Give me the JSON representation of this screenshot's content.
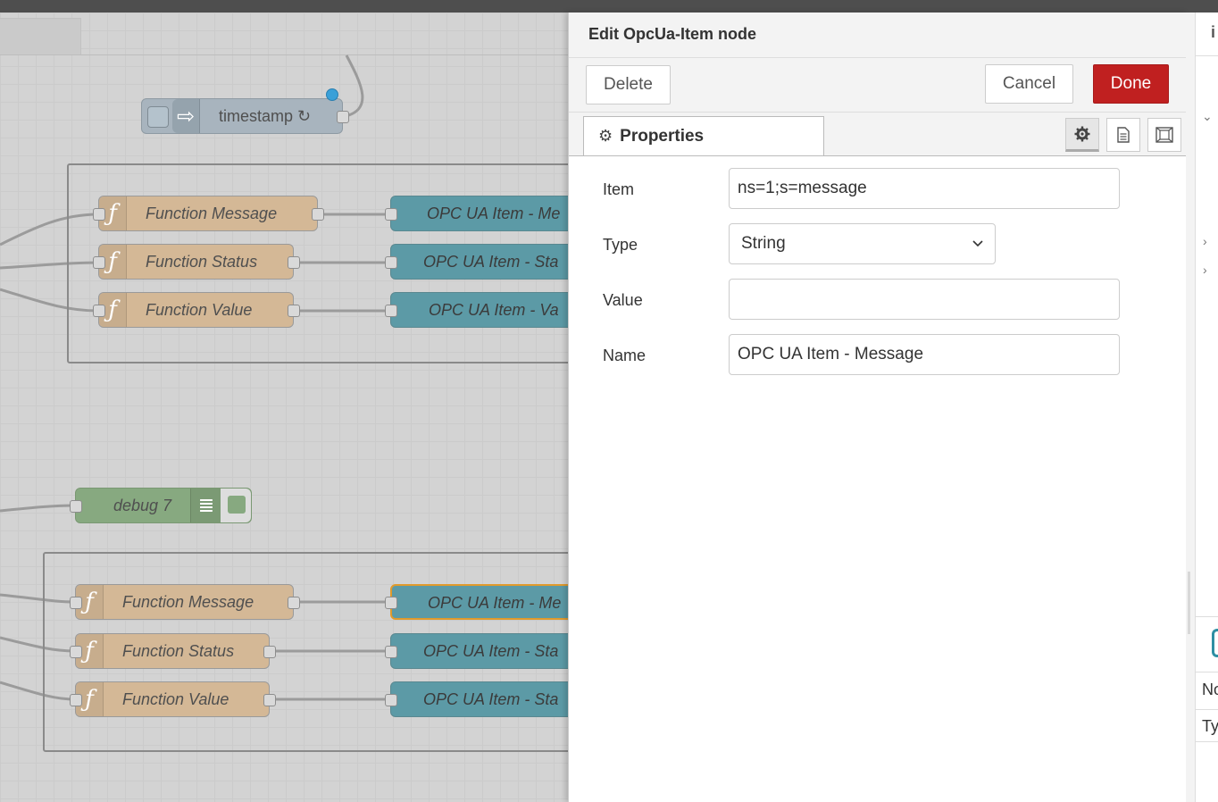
{
  "canvas": {
    "upper": {
      "inject": {
        "label": "timestamp ↻"
      },
      "functions": [
        "Function Message",
        "Function Status",
        "Function Value"
      ],
      "opc": [
        "OPC UA Item - Me",
        "OPC UA Item - Sta",
        "OPC UA Item - Va"
      ]
    },
    "debug": {
      "label": "debug 7"
    },
    "lower": {
      "functions": [
        "Function Message",
        "Function Status",
        "Function Value"
      ],
      "opc": [
        "OPC UA Item - Me",
        "OPC UA Item - Sta",
        "OPC UA Item - Sta"
      ]
    }
  },
  "tray": {
    "title": "Edit OpcUa-Item node",
    "delete_label": "Delete",
    "cancel_label": "Cancel",
    "done_label": "Done",
    "tab_label": "Properties",
    "fields": {
      "item": {
        "label": "Item",
        "value": "ns=1;s=message"
      },
      "type": {
        "label": "Type",
        "value": "String"
      },
      "value": {
        "label": "Value",
        "value": ""
      },
      "name": {
        "label": "Name",
        "value": "OPC UA Item - Message"
      }
    }
  },
  "sidebar": {
    "info_icon": "i",
    "row1": "No",
    "row2": "Ty"
  },
  "colors": {
    "done": "#c02020",
    "function_node": "#d4b896",
    "opc_node": "#5c9aa6",
    "selection": "#e09a2c"
  }
}
